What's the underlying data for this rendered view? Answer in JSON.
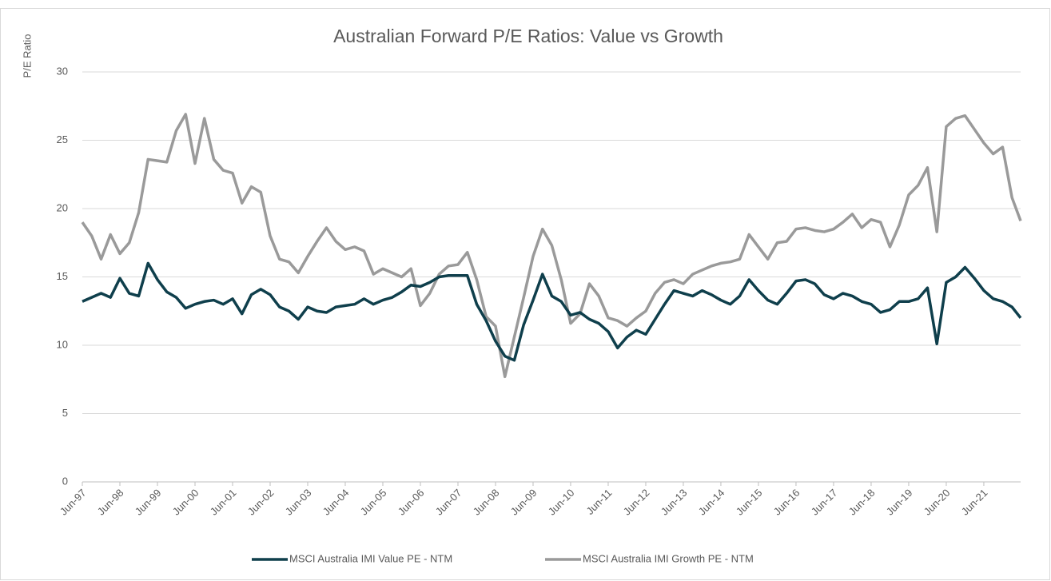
{
  "chart_data": {
    "type": "line",
    "title": "Australian Forward P/E Ratios: Value vs Growth",
    "y_label": "P/E Ratio",
    "x": [
      1997.42,
      1997.67,
      1997.92,
      1998.17,
      1998.42,
      1998.67,
      1998.92,
      1999.17,
      1999.42,
      1999.67,
      1999.92,
      2000.17,
      2000.42,
      2000.67,
      2000.92,
      2001.17,
      2001.42,
      2001.67,
      2001.92,
      2002.17,
      2002.42,
      2002.67,
      2002.92,
      2003.17,
      2003.42,
      2003.67,
      2003.92,
      2004.17,
      2004.42,
      2004.67,
      2004.92,
      2005.17,
      2005.42,
      2005.67,
      2005.92,
      2006.17,
      2006.42,
      2006.67,
      2006.92,
      2007.17,
      2007.42,
      2007.67,
      2007.92,
      2008.17,
      2008.42,
      2008.67,
      2008.92,
      2009.17,
      2009.42,
      2009.67,
      2009.92,
      2010.17,
      2010.42,
      2010.67,
      2010.92,
      2011.17,
      2011.42,
      2011.67,
      2011.92,
      2012.17,
      2012.42,
      2012.67,
      2012.92,
      2013.17,
      2013.42,
      2013.67,
      2013.92,
      2014.17,
      2014.42,
      2014.67,
      2014.92,
      2015.17,
      2015.42,
      2015.67,
      2015.92,
      2016.17,
      2016.42,
      2016.67,
      2016.92,
      2017.17,
      2017.42,
      2017.67,
      2017.92,
      2018.17,
      2018.42,
      2018.67,
      2018.92,
      2019.17,
      2019.42,
      2019.67,
      2019.92,
      2020.17,
      2020.42,
      2020.67,
      2020.92,
      2021.17,
      2021.42,
      2021.67,
      2021.92,
      2022.17,
      2022.4
    ],
    "series": [
      {
        "name": "MSCI Australia IMI Value PE - NTM",
        "color": "#0f3f4c",
        "values": [
          13.2,
          13.5,
          13.8,
          13.5,
          14.9,
          13.8,
          13.6,
          16.0,
          14.8,
          13.9,
          13.5,
          12.7,
          13.0,
          13.2,
          13.3,
          13.0,
          13.4,
          12.3,
          13.7,
          14.1,
          13.7,
          12.8,
          12.5,
          11.9,
          12.8,
          12.5,
          12.4,
          12.8,
          12.9,
          13.0,
          13.4,
          13.0,
          13.3,
          13.5,
          13.9,
          14.4,
          14.3,
          14.6,
          15.0,
          15.1,
          15.1,
          15.1,
          13.0,
          11.8,
          10.3,
          9.2,
          8.9,
          11.5,
          13.3,
          15.2,
          13.6,
          13.2,
          12.2,
          12.4,
          11.9,
          11.6,
          11.0,
          9.8,
          10.6,
          11.1,
          10.8,
          11.9,
          13.0,
          14.0,
          13.8,
          13.6,
          14.0,
          13.7,
          13.3,
          13.0,
          13.6,
          14.8,
          14.0,
          13.3,
          13.0,
          13.8,
          14.7,
          14.8,
          14.5,
          13.7,
          13.4,
          13.8,
          13.6,
          13.2,
          13.0,
          12.4,
          12.6,
          13.2,
          13.2,
          13.4,
          14.2,
          10.1,
          14.6,
          15.0,
          15.7,
          14.9,
          14.0,
          13.4,
          13.2,
          12.8,
          12.0
        ]
      },
      {
        "name": "MSCI Australia IMI Growth PE - NTM",
        "color": "#9a9a9a",
        "values": [
          19.0,
          18.0,
          16.3,
          18.1,
          16.7,
          17.5,
          19.7,
          23.6,
          23.5,
          23.4,
          25.7,
          26.9,
          23.3,
          26.6,
          23.6,
          22.8,
          22.6,
          20.4,
          21.6,
          21.2,
          18.0,
          16.3,
          16.1,
          15.3,
          16.5,
          17.6,
          18.6,
          17.6,
          17.0,
          17.2,
          16.9,
          15.2,
          15.6,
          15.3,
          15.0,
          15.6,
          12.9,
          13.8,
          15.2,
          15.8,
          15.9,
          16.8,
          14.8,
          12.1,
          11.4,
          7.7,
          10.6,
          13.5,
          16.5,
          18.5,
          17.3,
          14.8,
          11.6,
          12.3,
          14.5,
          13.6,
          12.0,
          11.8,
          11.4,
          12.0,
          12.5,
          13.8,
          14.6,
          14.8,
          14.5,
          15.2,
          15.5,
          15.8,
          16.0,
          16.1,
          16.3,
          18.1,
          17.2,
          16.3,
          17.5,
          17.6,
          18.5,
          18.6,
          18.4,
          18.3,
          18.5,
          19.0,
          19.6,
          18.6,
          19.2,
          19.0,
          17.2,
          18.8,
          21.0,
          21.7,
          23.0,
          18.3,
          26.0,
          26.6,
          26.8,
          25.8,
          24.8,
          24.0,
          24.5,
          20.8,
          19.1
        ]
      }
    ],
    "xlim": [
      1997.42,
      2022.4
    ],
    "xticks": [
      {
        "value": 1997.42,
        "label": "Jun-97"
      },
      {
        "value": 1998.42,
        "label": "Jun-98"
      },
      {
        "value": 1999.42,
        "label": "Jun-99"
      },
      {
        "value": 2000.42,
        "label": "Jun-00"
      },
      {
        "value": 2001.42,
        "label": "Jun-01"
      },
      {
        "value": 2002.42,
        "label": "Jun-02"
      },
      {
        "value": 2003.42,
        "label": "Jun-03"
      },
      {
        "value": 2004.42,
        "label": "Jun-04"
      },
      {
        "value": 2005.42,
        "label": "Jun-05"
      },
      {
        "value": 2006.42,
        "label": "Jun-06"
      },
      {
        "value": 2007.42,
        "label": "Jun-07"
      },
      {
        "value": 2008.42,
        "label": "Jun-08"
      },
      {
        "value": 2009.42,
        "label": "Jun-09"
      },
      {
        "value": 2010.42,
        "label": "Jun-10"
      },
      {
        "value": 2011.42,
        "label": "Jun-11"
      },
      {
        "value": 2012.42,
        "label": "Jun-12"
      },
      {
        "value": 2013.42,
        "label": "Jun-13"
      },
      {
        "value": 2014.42,
        "label": "Jun-14"
      },
      {
        "value": 2015.42,
        "label": "Jun-15"
      },
      {
        "value": 2016.42,
        "label": "Jun-16"
      },
      {
        "value": 2017.42,
        "label": "Jun-17"
      },
      {
        "value": 2018.42,
        "label": "Jun-18"
      },
      {
        "value": 2019.42,
        "label": "Jun-19"
      },
      {
        "value": 2020.42,
        "label": "Jun-20"
      },
      {
        "value": 2021.42,
        "label": "Jun-21"
      }
    ],
    "ylim": [
      0,
      30
    ],
    "yticks": [
      0,
      5,
      10,
      15,
      20,
      25,
      30
    ],
    "grid": true,
    "legend": "bottom"
  }
}
